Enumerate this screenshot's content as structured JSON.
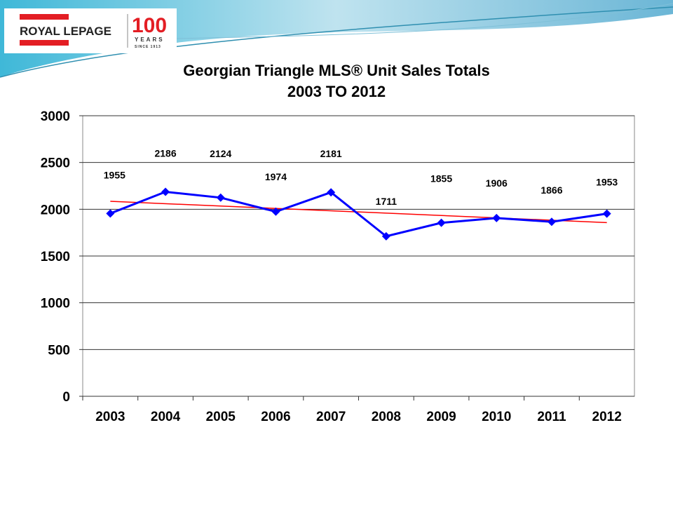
{
  "logo": {
    "brand": "ROYAL LEPAGE",
    "anniversary": "100",
    "years": "YEARS",
    "since": "SINCE 1913"
  },
  "colors": {
    "series": "#0000ff",
    "trendline": "#ff0000",
    "brand_red": "#e31e24"
  },
  "chart_data": {
    "type": "line",
    "title": "Georgian Triangle MLS® Unit Sales Totals",
    "subtitle": "2003 TO 2012",
    "categories": [
      "2003",
      "2004",
      "2005",
      "2006",
      "2007",
      "2008",
      "2009",
      "2010",
      "2011",
      "2012"
    ],
    "series": [
      {
        "values": [
          1955,
          2186,
          2124,
          1974,
          2181,
          1711,
          1855,
          1906,
          1866,
          1953
        ],
        "marker": "diamond",
        "data_labels": true
      }
    ],
    "trendline": {
      "type": "linear",
      "color": "#ff0000"
    },
    "ylim": [
      0,
      3000
    ],
    "yticks": [
      0,
      500,
      1000,
      1500,
      2000,
      2500,
      3000
    ],
    "grid": true,
    "legend": "none",
    "xlabel": "",
    "ylabel": ""
  }
}
